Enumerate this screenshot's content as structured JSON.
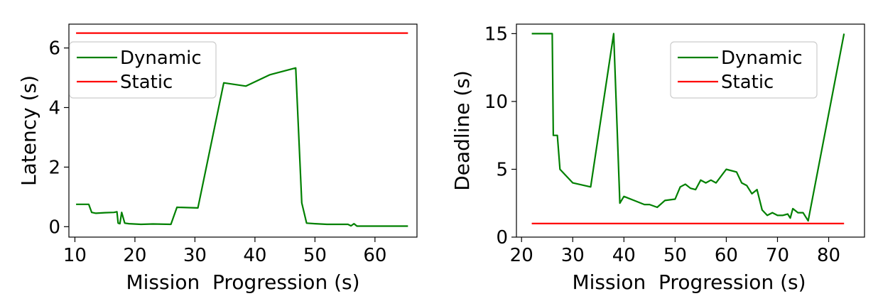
{
  "chart_data": [
    {
      "type": "line",
      "title": "",
      "xlabel": "Mission  Progression (s)",
      "ylabel": "Latency (s)",
      "xlim": [
        9,
        67
      ],
      "ylim": [
        -0.35,
        6.8
      ],
      "xticks": [
        10,
        20,
        30,
        40,
        50,
        60
      ],
      "yticks": [
        0,
        2,
        4,
        6
      ],
      "legend": {
        "placement": "upper-left"
      },
      "series": [
        {
          "name": "Dynamic",
          "color": "#008000",
          "x": [
            10.2,
            12.3,
            12.8,
            13.5,
            15.0,
            16.5,
            17.0,
            17.2,
            17.5,
            17.8,
            18.3,
            19.0,
            21.0,
            23.0,
            26.0,
            27.0,
            30.5,
            34.8,
            38.5,
            42.5,
            46.8,
            47.8,
            48.6,
            50.0,
            52.0,
            54.0,
            55.5,
            56.0,
            56.5,
            57.0,
            60.0,
            65.5
          ],
          "y": [
            0.75,
            0.75,
            0.48,
            0.45,
            0.47,
            0.48,
            0.5,
            0.12,
            0.1,
            0.48,
            0.12,
            0.1,
            0.08,
            0.09,
            0.08,
            0.65,
            0.63,
            4.83,
            4.72,
            5.1,
            5.33,
            0.8,
            0.12,
            0.1,
            0.08,
            0.08,
            0.08,
            0.03,
            0.1,
            0.02,
            0.02,
            0.02
          ]
        },
        {
          "name": "Static",
          "color": "#ff0000",
          "x": [
            10.2,
            65.5
          ],
          "y": [
            6.5,
            6.5
          ]
        }
      ]
    },
    {
      "type": "line",
      "title": "",
      "xlabel": "Mission  Progression (s)",
      "ylabel": "Deadline (s)",
      "xlim": [
        19,
        87
      ],
      "ylim": [
        0,
        15.7
      ],
      "xticks": [
        20,
        30,
        40,
        50,
        60,
        70,
        80
      ],
      "yticks": [
        0,
        5,
        10,
        15
      ],
      "legend": {
        "placement": "upper-right"
      },
      "series": [
        {
          "name": "Dynamic",
          "color": "#008000",
          "x": [
            22.0,
            26.0,
            26.2,
            26.5,
            27.0,
            27.5,
            30.0,
            33.5,
            38.0,
            39.2,
            40.0,
            42.0,
            44.0,
            45.0,
            46.5,
            48.0,
            50.0,
            51.0,
            52.0,
            53.0,
            54.0,
            55.0,
            56.0,
            57.0,
            58.0,
            59.0,
            60.0,
            62.0,
            63.0,
            64.0,
            65.0,
            66.0,
            67.0,
            68.0,
            69.0,
            70.0,
            71.0,
            72.0,
            72.5,
            73.0,
            74.0,
            75.0,
            76.0,
            83.0
          ],
          "y": [
            15.0,
            15.0,
            7.5,
            7.5,
            7.5,
            5.0,
            4.0,
            3.7,
            15.0,
            2.5,
            3.0,
            2.7,
            2.4,
            2.4,
            2.2,
            2.7,
            2.8,
            3.7,
            3.9,
            3.6,
            3.5,
            4.2,
            4.0,
            4.2,
            4.0,
            4.5,
            5.0,
            4.8,
            4.0,
            3.8,
            3.2,
            3.5,
            2.0,
            1.6,
            1.8,
            1.6,
            1.6,
            1.7,
            1.4,
            2.1,
            1.8,
            1.8,
            1.2,
            15.0
          ]
        },
        {
          "name": "Static",
          "color": "#ff0000",
          "x": [
            22.0,
            83.0
          ],
          "y": [
            1.0,
            1.0
          ]
        }
      ]
    }
  ]
}
